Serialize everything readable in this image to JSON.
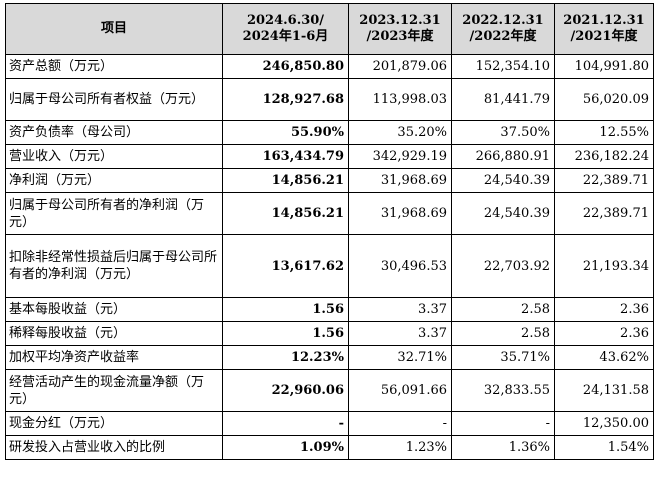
{
  "table": {
    "headers": [
      "项目",
      "2024.6.30/\n2024年1-6月",
      "2023.12.31\n/2023年度",
      "2022.12.31\n/2022年度",
      "2021.12.31\n/2021年度"
    ],
    "rows": [
      {
        "label": "资产总额（万元）",
        "values": [
          "246,850.80",
          "201,879.06",
          "152,354.10",
          "104,991.80"
        ]
      },
      {
        "label": "归属于母公司所有者权益（万元）",
        "values": [
          "128,927.68",
          "113,998.03",
          "81,441.79",
          "56,020.09"
        ]
      },
      {
        "label": "资产负债率（母公司）",
        "values": [
          "55.90%",
          "35.20%",
          "37.50%",
          "12.55%"
        ]
      },
      {
        "label": "营业收入（万元）",
        "values": [
          "163,434.79",
          "342,929.19",
          "266,880.91",
          "236,182.24"
        ]
      },
      {
        "label": "净利润（万元）",
        "values": [
          "14,856.21",
          "31,968.69",
          "24,540.39",
          "22,389.71"
        ]
      },
      {
        "label": "归属于母公司所有者的净利润（万元）",
        "values": [
          "14,856.21",
          "31,968.69",
          "24,540.39",
          "22,389.71"
        ]
      },
      {
        "label": "扣除非经常性损益后归属于母公司所有者的净利润（万元）",
        "values": [
          "13,617.62",
          "30,496.53",
          "22,703.92",
          "21,193.34"
        ]
      },
      {
        "label": "基本每股收益（元）",
        "values": [
          "1.56",
          "3.37",
          "2.58",
          "2.36"
        ]
      },
      {
        "label": "稀释每股收益（元）",
        "values": [
          "1.56",
          "3.37",
          "2.58",
          "2.36"
        ]
      },
      {
        "label": "加权平均净资产收益率",
        "values": [
          "12.23%",
          "32.71%",
          "35.71%",
          "43.62%"
        ]
      },
      {
        "label": "经营活动产生的现金流量净额（万元）",
        "values": [
          "22,960.06",
          "56,091.66",
          "32,833.55",
          "24,131.58"
        ]
      },
      {
        "label": "现金分红（万元）",
        "values": [
          "-",
          "-",
          "-",
          "12,350.00"
        ]
      },
      {
        "label": "研发投入占营业收入的比例",
        "values": [
          "1.09%",
          "1.23%",
          "1.36%",
          "1.54%"
        ]
      }
    ]
  }
}
